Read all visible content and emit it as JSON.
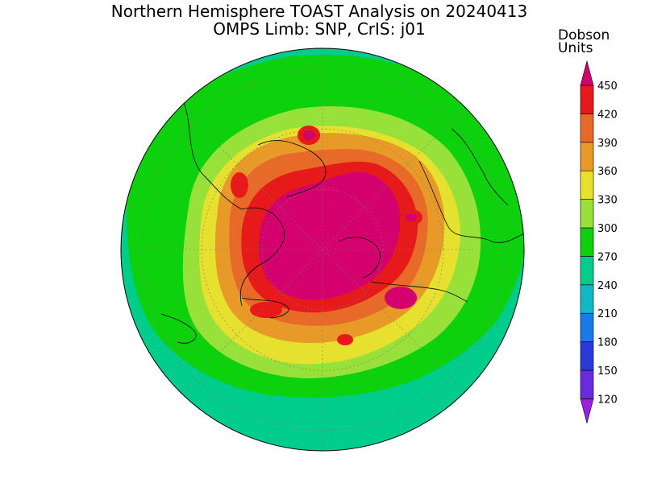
{
  "title_line1": "Northern Hemisphere TOAST Analysis on 20240413",
  "title_line2": "OMPS Limb: SNP, CrIS: j01",
  "units_line1": "Dobson",
  "units_line2": "Units",
  "colorbar": {
    "levels": [
      120,
      150,
      180,
      210,
      240,
      270,
      300,
      330,
      360,
      390,
      420,
      450
    ],
    "tick_labels": [
      "120",
      "150",
      "180",
      "210",
      "240",
      "270",
      "300",
      "330",
      "360",
      "390",
      "420",
      "450"
    ],
    "colors": [
      "#9b1fe0",
      "#6a2be0",
      "#2a3ad8",
      "#1a7ae8",
      "#11b8c8",
      "#00cc8c",
      "#0cd10c",
      "#98e03a",
      "#e6e02e",
      "#e89a28",
      "#e86a28",
      "#e61a1a",
      "#d4006e"
    ]
  },
  "map": {
    "projection": "north-polar-stereographic",
    "colors": {
      "240": "#00cc8c",
      "270": "#0cd10c",
      "300": "#98e03a",
      "330": "#e6e02e",
      "360": "#e89a28",
      "390": "#e86a28",
      "420": "#e61a1a",
      "450": "#d4006e"
    }
  }
}
